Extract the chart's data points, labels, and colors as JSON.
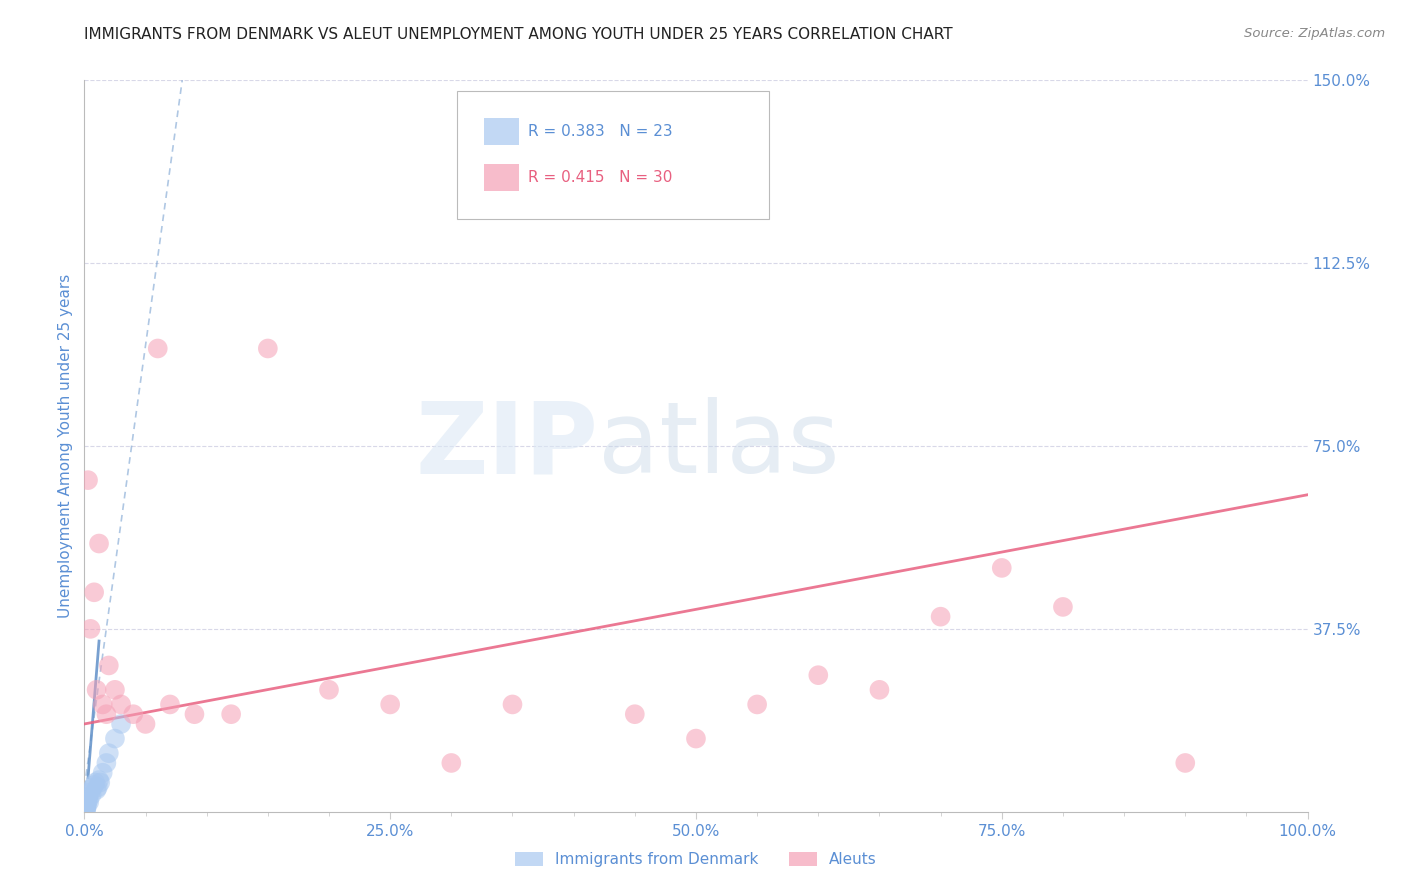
{
  "title": "IMMIGRANTS FROM DENMARK VS ALEUT UNEMPLOYMENT AMONG YOUTH UNDER 25 YEARS CORRELATION CHART",
  "source": "Source: ZipAtlas.com",
  "ylabel_left": "Unemployment Among Youth under 25 years",
  "x_tick_labels": [
    "0.0%",
    "",
    "",
    "",
    "",
    "25.0%",
    "",
    "",
    "",
    "",
    "50.0%",
    "",
    "",
    "",
    "",
    "75.0%",
    "",
    "",
    "",
    "",
    "100.0%"
  ],
  "x_tick_values": [
    0,
    5,
    10,
    15,
    20,
    25,
    30,
    35,
    40,
    45,
    50,
    55,
    60,
    65,
    70,
    75,
    80,
    85,
    90,
    95,
    100
  ],
  "x_minor_ticks": [
    0,
    5,
    10,
    15,
    20,
    25,
    30,
    35,
    40,
    45,
    50,
    55,
    60,
    65,
    70,
    75,
    80,
    85,
    90,
    95,
    100
  ],
  "x_label_ticks": [
    0,
    25,
    50,
    75,
    100
  ],
  "x_label_strs": [
    "0.0%",
    "25.0%",
    "50.0%",
    "75.0%",
    "100.0%"
  ],
  "y_tick_labels_right": [
    "37.5%",
    "75.0%",
    "112.5%",
    "150.0%"
  ],
  "y_tick_values_right": [
    37.5,
    75.0,
    112.5,
    150.0
  ],
  "xlim": [
    0,
    100
  ],
  "ylim": [
    0,
    150
  ],
  "color_denmark": "#a8c8f0",
  "color_aleut": "#f5a0b5",
  "color_denmark_line": "#6090c8",
  "color_aleut_line": "#e86080",
  "color_axis_labels": "#5b8fd4",
  "color_title": "#222222",
  "watermark_zip": "ZIP",
  "watermark_atlas": "atlas",
  "background_color": "#ffffff",
  "grid_color": "#d8d8e8",
  "denmark_scatter_x": [
    0.15,
    0.2,
    0.25,
    0.3,
    0.35,
    0.4,
    0.5,
    0.6,
    0.7,
    0.8,
    0.9,
    1.0,
    1.1,
    1.2,
    1.3,
    1.5,
    1.8,
    2.0,
    2.5,
    3.0,
    0.1,
    0.15,
    0.2
  ],
  "denmark_scatter_y": [
    0.5,
    1.0,
    2.0,
    3.0,
    2.5,
    2.0,
    4.0,
    3.5,
    5.0,
    5.5,
    6.0,
    4.5,
    5.0,
    6.5,
    6.0,
    8.0,
    10.0,
    12.0,
    15.0,
    18.0,
    0.3,
    0.8,
    1.5
  ],
  "aleut_scatter_x": [
    0.3,
    0.5,
    0.8,
    1.0,
    1.2,
    1.5,
    1.8,
    2.0,
    2.5,
    3.0,
    4.0,
    5.0,
    6.0,
    7.0,
    9.0,
    12.0,
    15.0,
    20.0,
    25.0,
    30.0,
    35.0,
    45.0,
    50.0,
    55.0,
    60.0,
    65.0,
    70.0,
    75.0,
    80.0,
    90.0
  ],
  "aleut_scatter_y": [
    68.0,
    37.5,
    45.0,
    25.0,
    55.0,
    22.0,
    20.0,
    30.0,
    25.0,
    22.0,
    20.0,
    18.0,
    95.0,
    22.0,
    20.0,
    20.0,
    95.0,
    25.0,
    22.0,
    10.0,
    22.0,
    20.0,
    15.0,
    22.0,
    28.0,
    25.0,
    40.0,
    50.0,
    42.0,
    10.0
  ],
  "dk_line_x0": 0.0,
  "dk_line_y0": 5.0,
  "dk_line_x1": 8.0,
  "dk_line_y1": 150.0,
  "dk_solid_x0": 0.3,
  "dk_solid_y0": 7.0,
  "dk_solid_x1": 1.2,
  "dk_solid_y1": 35.0,
  "al_line_x0": 0.0,
  "al_line_y0": 18.0,
  "al_line_x1": 100.0,
  "al_line_y1": 65.0
}
